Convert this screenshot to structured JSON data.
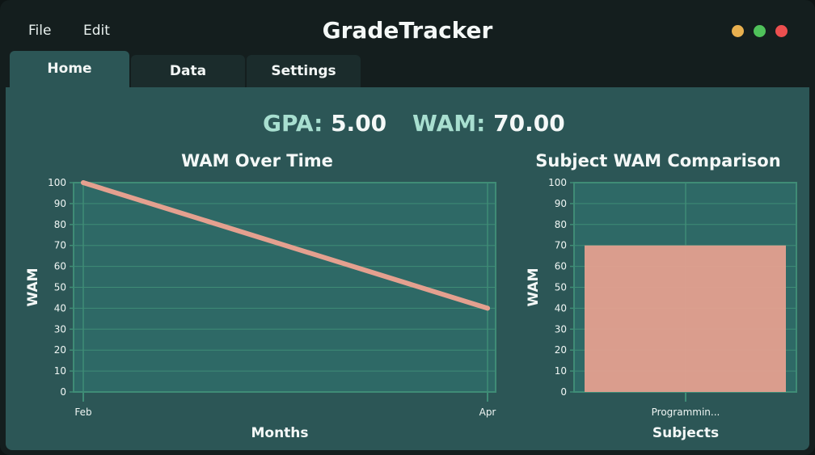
{
  "menu": {
    "file": "File",
    "edit": "Edit"
  },
  "app": {
    "title": "GradeTracker"
  },
  "window_controls": {
    "minimize_color": "#e8b04f",
    "maximize_color": "#4fc15a",
    "close_color": "#ec4f4f"
  },
  "tabs": [
    {
      "label": "Home",
      "active": true
    },
    {
      "label": "Data",
      "active": false
    },
    {
      "label": "Settings",
      "active": false
    }
  ],
  "stats": {
    "gpa_label": "GPA:",
    "gpa_value": "5.00",
    "wam_label": "WAM:",
    "wam_value": "70.00"
  },
  "colors": {
    "accent": "#a8dfd0",
    "panel": "#2c5656",
    "plot_bg": "#2e6966",
    "grid": "#3f8c76",
    "series": "#e4a08f"
  },
  "chart_data": [
    {
      "type": "line",
      "title": "WAM Over Time",
      "xlabel": "Months",
      "ylabel": "WAM",
      "x": [
        "Feb",
        "Apr"
      ],
      "series": [
        {
          "values": [
            100,
            40
          ]
        }
      ],
      "ylim": [
        0,
        100
      ],
      "yticks": [
        0,
        10,
        20,
        30,
        40,
        50,
        60,
        70,
        80,
        90,
        100
      ],
      "grid": true
    },
    {
      "type": "bar",
      "title": "Subject WAM Comparison",
      "xlabel": "Subjects",
      "ylabel": "WAM",
      "categories": [
        "Programmin..."
      ],
      "values": [
        70
      ],
      "ylim": [
        0,
        100
      ],
      "yticks": [
        0,
        10,
        20,
        30,
        40,
        50,
        60,
        70,
        80,
        90,
        100
      ],
      "grid": true
    }
  ]
}
